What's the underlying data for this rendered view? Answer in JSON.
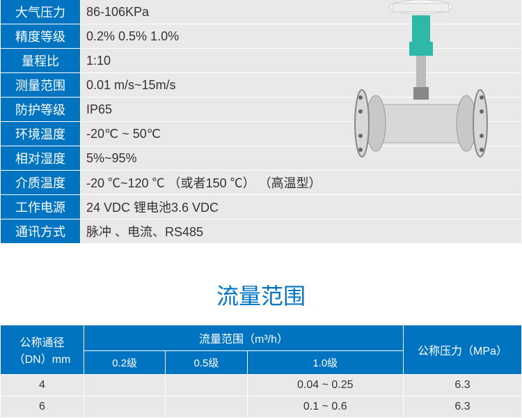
{
  "specs": [
    {
      "label": "大气压力",
      "value": "86-106KPa",
      "narrow": true
    },
    {
      "label": "精度等级",
      "value": " 0.2%    0.5%   1.0%",
      "narrow": true
    },
    {
      "label": "量程比",
      "value": "1:10",
      "narrow": true
    },
    {
      "label": "测量范围",
      "value": "0.01 m/s~15m/s",
      "narrow": true
    },
    {
      "label": "防护等级",
      "value": "IP65",
      "narrow": true
    },
    {
      "label": "环境温度",
      "value": "-20℃ ~ 50℃",
      "narrow": true
    },
    {
      "label": "相对湿度",
      "value": "5%~95%",
      "narrow": true
    },
    {
      "label": "介质温度",
      "value": "-20 ℃~120 ℃ （或者150 ℃） （高温型）",
      "narrow": false
    },
    {
      "label": "工作电源",
      "value": "24 VDC   锂电池3.6 VDC",
      "narrow": false
    },
    {
      "label": "通讯方式",
      "value": "脉冲 、电流、RS485",
      "narrow": false
    }
  ],
  "section_title": "流量范围",
  "flow_headers": {
    "dn": "公称通径（DN）mm",
    "range": "流量范围（m³/h）",
    "pressure": "公称压力（MPa）",
    "g02": "0.2级",
    "g05": "0.5级",
    "g10": "1.0级"
  },
  "flow_rows": [
    {
      "dn": "4",
      "g02": "",
      "g05": "",
      "g10": "0.04 ~ 0.25",
      "pressure": "6.3"
    },
    {
      "dn": "6",
      "g02": "",
      "g05": "",
      "g10": "0.1 ~ 0.6",
      "pressure": "6.3"
    }
  ],
  "colors": {
    "primary": "#0074c1",
    "cell_bg": "#e9e9e9",
    "meter_body": "#d8d8d8",
    "meter_accent": "#2eb8a8",
    "meter_dark": "#888"
  }
}
